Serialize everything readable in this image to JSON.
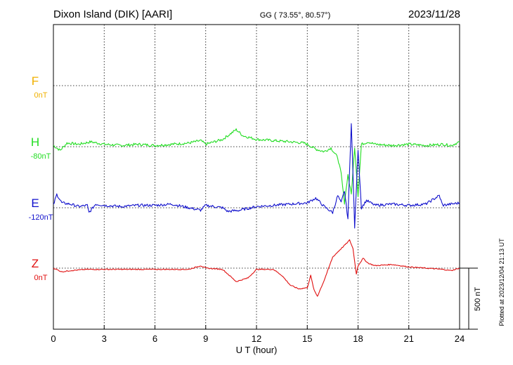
{
  "header": {
    "station": "Dixon Island (DIK)  [AARI]",
    "coords": "GG ( 73.55°,  80.57°)",
    "date": "2023/11/28"
  },
  "footer": {
    "plotted": "Plotted at 2023/12/04 21:13 UT",
    "scale_label": "500 nT"
  },
  "chart_data": {
    "type": "line",
    "xlabel": "U T (hour)",
    "x_ticks": [
      0,
      3,
      6,
      9,
      12,
      15,
      18,
      21,
      24
    ],
    "xlim": [
      0,
      24
    ],
    "scale_bar_nT": 500,
    "colors": {
      "F": "#f0b000",
      "H": "#22dd22",
      "E": "#1010cc",
      "Z": "#e01010"
    },
    "series": [
      {
        "name": "F",
        "baseline_label": "0nT",
        "color": "#f0b000",
        "points": []
      },
      {
        "name": "H",
        "baseline_label": "-80nT",
        "color": "#22dd22",
        "points": [
          [
            0,
            -70
          ],
          [
            0.4,
            -110
          ],
          [
            0.8,
            -50
          ],
          [
            1.5,
            -60
          ],
          [
            2.2,
            -40
          ],
          [
            3,
            -60
          ],
          [
            4,
            -70
          ],
          [
            5,
            -60
          ],
          [
            6,
            -70
          ],
          [
            7,
            -60
          ],
          [
            8,
            -50
          ],
          [
            8.7,
            -30
          ],
          [
            9,
            -60
          ],
          [
            9.5,
            -40
          ],
          [
            10,
            -20
          ],
          [
            10.5,
            30
          ],
          [
            10.8,
            60
          ],
          [
            11.2,
            10
          ],
          [
            12,
            -20
          ],
          [
            13,
            -30
          ],
          [
            14,
            -40
          ],
          [
            14.8,
            -50
          ],
          [
            15,
            -60
          ],
          [
            15.5,
            -100
          ],
          [
            16,
            -120
          ],
          [
            16.4,
            -90
          ],
          [
            16.8,
            -170
          ],
          [
            17,
            -300
          ],
          [
            17.2,
            -540
          ],
          [
            17.4,
            -310
          ],
          [
            17.6,
            -470
          ],
          [
            17.8,
            -80
          ],
          [
            18,
            -480
          ],
          [
            18.2,
            -60
          ],
          [
            18.6,
            -40
          ],
          [
            19,
            -60
          ],
          [
            20,
            -70
          ],
          [
            21,
            -60
          ],
          [
            22,
            -70
          ],
          [
            23,
            -60
          ],
          [
            23.5,
            -70
          ],
          [
            24,
            -40
          ]
        ]
      },
      {
        "name": "E",
        "baseline_label": "-120nT",
        "color": "#1010cc",
        "points": [
          [
            0,
            -100
          ],
          [
            0.2,
            -10
          ],
          [
            0.5,
            -80
          ],
          [
            1,
            -90
          ],
          [
            1.5,
            -110
          ],
          [
            2,
            -100
          ],
          [
            2.1,
            -160
          ],
          [
            2.5,
            -90
          ],
          [
            3,
            -100
          ],
          [
            4,
            -110
          ],
          [
            5,
            -100
          ],
          [
            6,
            -100
          ],
          [
            7,
            -90
          ],
          [
            8,
            -120
          ],
          [
            8.7,
            -140
          ],
          [
            9,
            -100
          ],
          [
            10,
            -120
          ],
          [
            10.3,
            -150
          ],
          [
            11,
            -140
          ],
          [
            12,
            -110
          ],
          [
            13,
            -100
          ],
          [
            14,
            -90
          ],
          [
            15,
            -80
          ],
          [
            15.5,
            -40
          ],
          [
            16,
            -110
          ],
          [
            16.5,
            -160
          ],
          [
            16.8,
            -20
          ],
          [
            17,
            -80
          ],
          [
            17.2,
            20
          ],
          [
            17.4,
            -210
          ],
          [
            17.6,
            580
          ],
          [
            17.8,
            -280
          ],
          [
            18,
            360
          ],
          [
            18.2,
            -120
          ],
          [
            18.5,
            -60
          ],
          [
            19,
            -100
          ],
          [
            20,
            -90
          ],
          [
            21,
            -100
          ],
          [
            22,
            -90
          ],
          [
            22.8,
            -20
          ],
          [
            23,
            -100
          ],
          [
            23.5,
            -90
          ],
          [
            24,
            -80
          ]
        ]
      },
      {
        "name": "Z",
        "baseline_label": "0nT",
        "color": "#e01010",
        "points": [
          [
            0,
            0
          ],
          [
            0.5,
            -30
          ],
          [
            1,
            -20
          ],
          [
            2,
            -10
          ],
          [
            3,
            -10
          ],
          [
            4,
            -10
          ],
          [
            5,
            -10
          ],
          [
            6,
            -10
          ],
          [
            7,
            -10
          ],
          [
            8,
            -10
          ],
          [
            8.7,
            20
          ],
          [
            9,
            0
          ],
          [
            10,
            -10
          ],
          [
            10.8,
            -110
          ],
          [
            11.5,
            -80
          ],
          [
            12,
            -10
          ],
          [
            13,
            -10
          ],
          [
            13.5,
            -60
          ],
          [
            14,
            -140
          ],
          [
            14.5,
            -170
          ],
          [
            15,
            -160
          ],
          [
            15.2,
            -60
          ],
          [
            15.4,
            -180
          ],
          [
            15.6,
            -230
          ],
          [
            16,
            -100
          ],
          [
            16.5,
            90
          ],
          [
            17,
            160
          ],
          [
            17.3,
            200
          ],
          [
            17.5,
            230
          ],
          [
            17.7,
            160
          ],
          [
            17.9,
            -50
          ],
          [
            18,
            20
          ],
          [
            18.3,
            80
          ],
          [
            18.6,
            40
          ],
          [
            19,
            20
          ],
          [
            20,
            30
          ],
          [
            21,
            10
          ],
          [
            22,
            0
          ],
          [
            23,
            -10
          ],
          [
            23.5,
            -20
          ],
          [
            24,
            0
          ]
        ]
      }
    ]
  }
}
